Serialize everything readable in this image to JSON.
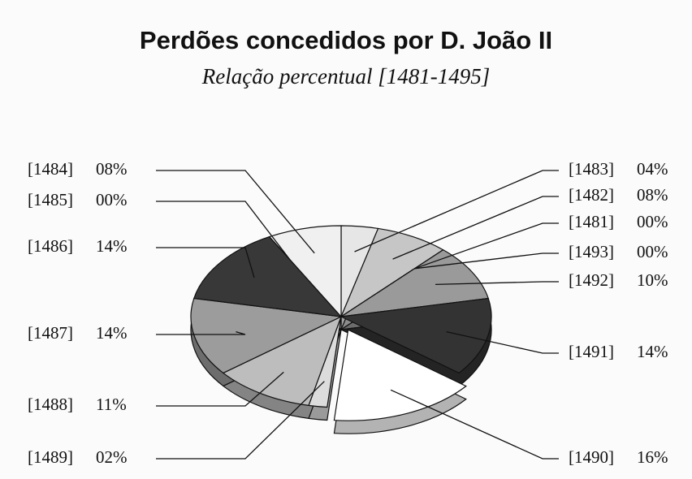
{
  "chart_data": {
    "type": "pie",
    "title": "Perdões concedidos por D. João II",
    "subtitle": "Relação percentual [1481-1495]",
    "categories": [
      "[1483]",
      "[1482]",
      "[1481]",
      "[1493]",
      "[1492]",
      "[1491]",
      "[1490]",
      "[1489]",
      "[1488]",
      "[1487]",
      "[1486]",
      "[1485]",
      "[1484]"
    ],
    "values": [
      4,
      8,
      0,
      0,
      10,
      14,
      16,
      2,
      11,
      14,
      14,
      0,
      8
    ],
    "value_labels": [
      "04%",
      "08%",
      "00%",
      "00%",
      "10%",
      "14%",
      "16%",
      "02%",
      "11%",
      "14%",
      "14%",
      "00%",
      "08%"
    ],
    "colors": [
      "#e6e6e6",
      "#c6c6c6",
      "#b0b0b0",
      "#a8a8a8",
      "#9a9a9a",
      "#333333",
      "#ffffff",
      "#dcdcdc",
      "#bdbdbd",
      "#9c9c9c",
      "#383838",
      "#555555",
      "#f0f0f0"
    ]
  }
}
